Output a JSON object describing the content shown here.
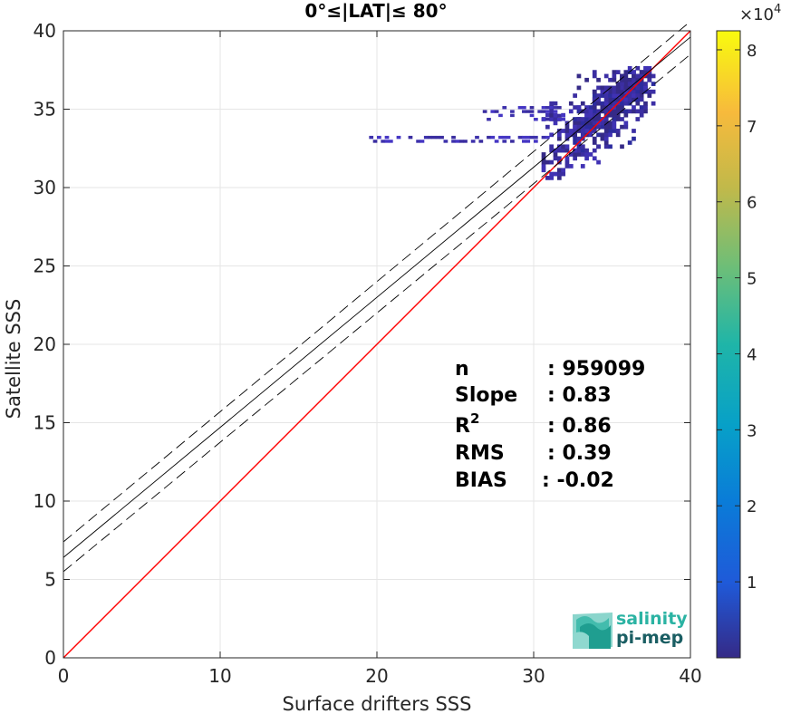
{
  "chart_data": {
    "type": "heatmap",
    "title": "0°≤|LAT|≤ 80°",
    "xlabel": "Surface drifters SSS",
    "ylabel": "Satellite SSS",
    "xlim": [
      0,
      40
    ],
    "ylim": [
      0,
      40
    ],
    "xticks": [
      "0",
      "10",
      "20",
      "30",
      "40"
    ],
    "yticks": [
      "0",
      "5",
      "10",
      "15",
      "20",
      "25",
      "30",
      "35",
      "40"
    ],
    "grid": true,
    "colorbar": {
      "range": [
        0,
        82500
      ],
      "ticks": [
        "1",
        "2",
        "3",
        "4",
        "5",
        "6",
        "7",
        "8"
      ],
      "tick_values": [
        10000,
        20000,
        30000,
        40000,
        50000,
        60000,
        70000,
        80000
      ],
      "exponent": "×10",
      "exponent_power": "4",
      "colormap": "parula"
    },
    "lines": [
      {
        "role": "identity",
        "color": "#ff0000",
        "style": "solid",
        "x": [
          0,
          40
        ],
        "y": [
          0,
          40
        ]
      },
      {
        "role": "regression",
        "color": "#000000",
        "style": "solid",
        "x": [
          0,
          40
        ],
        "y": [
          6.4,
          39.6
        ]
      },
      {
        "role": "regression-upper",
        "color": "#000000",
        "style": "dashed",
        "x": [
          0,
          40
        ],
        "y": [
          7.4,
          40.6
        ]
      },
      {
        "role": "regression-lower",
        "color": "#000000",
        "style": "dashed",
        "x": [
          0,
          40
        ],
        "y": [
          5.5,
          38.5
        ]
      }
    ],
    "density_clusters": [
      {
        "x_range": [
          32.5,
          37.8
        ],
        "y_range": [
          32.0,
          37.5
        ],
        "level": "high"
      },
      {
        "x_range": [
          30.5,
          37.5
        ],
        "y_range": [
          30.5,
          37.8
        ],
        "level": "medium"
      },
      {
        "x_range": [
          19.5,
          31.0
        ],
        "y_range": [
          32.8,
          33.3
        ],
        "level": "low"
      },
      {
        "x_range": [
          26.5,
          32.0
        ],
        "y_range": [
          34.2,
          35.3
        ],
        "level": "low"
      }
    ],
    "stats": [
      {
        "label": "n",
        "value": ": 959099"
      },
      {
        "label": "Slope",
        "value": ": 0.83"
      },
      {
        "label": "R",
        "label_sup": "2",
        "value": ": 0.86"
      },
      {
        "label": "RMS",
        "value": ": 0.39"
      },
      {
        "label": "BIAS",
        "value": ": -0.02"
      }
    ]
  },
  "logo": {
    "line1": "salinity",
    "line2": "pi-mep",
    "color1": "#2bb3a3",
    "color2": "#1a5e63"
  }
}
